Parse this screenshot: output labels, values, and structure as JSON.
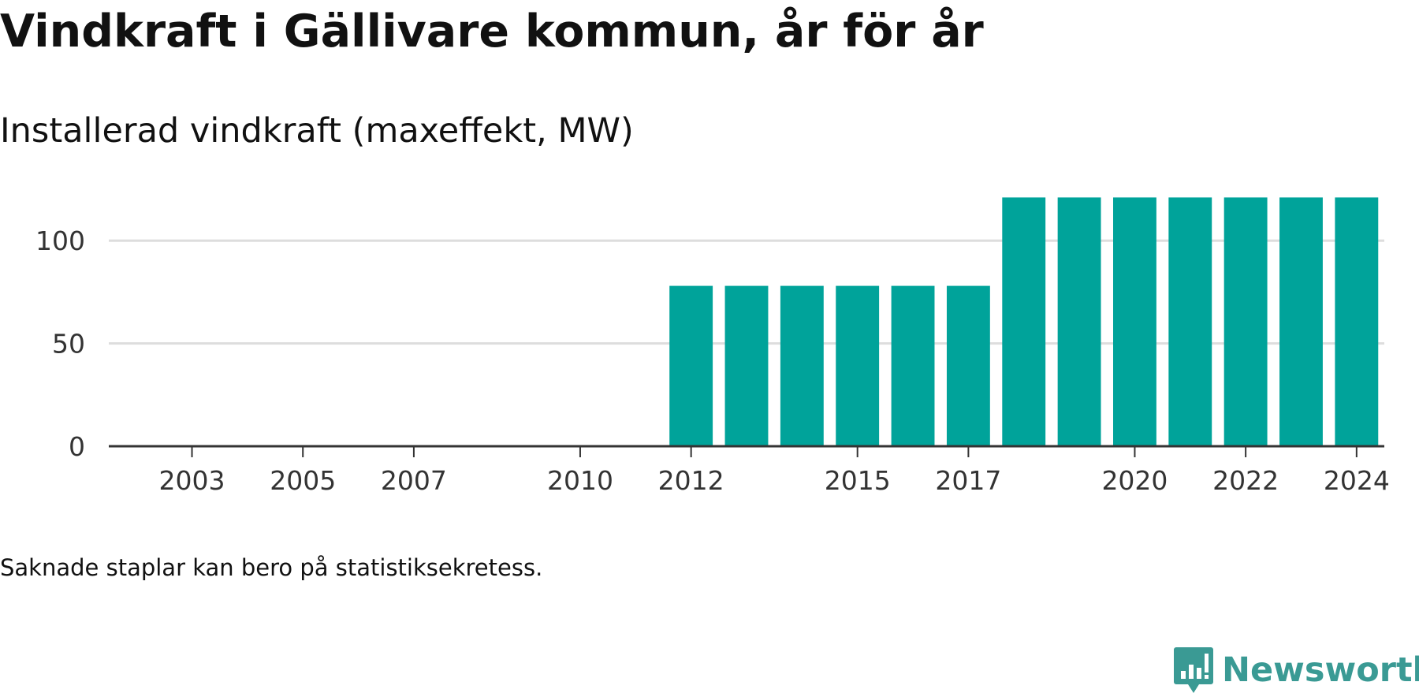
{
  "header": {
    "title": "Vindkraft i Gällivare kommun, år för år",
    "subtitle": "Installerad vindkraft (maxeffekt, MW)"
  },
  "footer": {
    "note": "Saknade staplar kan bero på statistiksekretess.",
    "brand": "Newsworthy"
  },
  "colors": {
    "bar": "#00a39a",
    "grid": "#dddddd",
    "axis": "#333333",
    "brand": "#3a9a94"
  },
  "icons": {
    "brand_logo": "newsworthy-logo-icon"
  },
  "chart_data": {
    "type": "bar",
    "title": "Installerad vindkraft (maxeffekt, MW)",
    "xlabel": "",
    "ylabel": "",
    "categories": [
      "2002",
      "2003",
      "2004",
      "2005",
      "2006",
      "2007",
      "2008",
      "2009",
      "2010",
      "2011",
      "2012",
      "2013",
      "2014",
      "2015",
      "2016",
      "2017",
      "2018",
      "2019",
      "2020",
      "2021",
      "2022",
      "2023",
      "2024"
    ],
    "values": [
      null,
      null,
      null,
      null,
      null,
      null,
      null,
      null,
      null,
      null,
      78,
      78,
      78,
      78,
      78,
      78,
      121,
      121,
      121,
      121,
      121,
      121,
      121
    ],
    "x_tick_labels": [
      "2003",
      "2005",
      "2007",
      "2010",
      "2012",
      "2015",
      "2017",
      "2020",
      "2022",
      "2024"
    ],
    "y_ticks": [
      0,
      50,
      100
    ],
    "ylim": [
      0,
      125
    ],
    "grid": true,
    "legend": "none"
  }
}
